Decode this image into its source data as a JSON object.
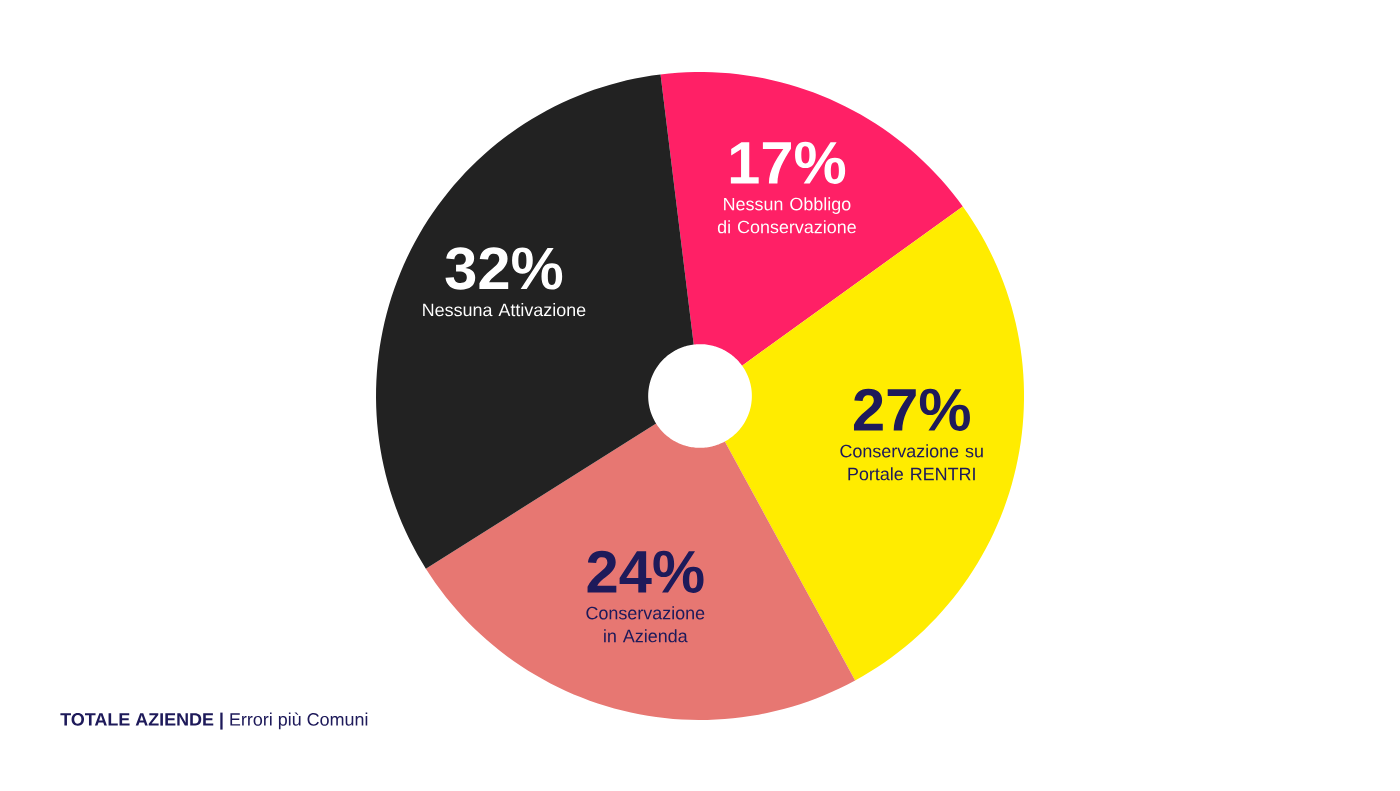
{
  "chart_data": {
    "type": "donut",
    "categories": [
      "Nessun Obbligo di Conservazione",
      "Conservazione su Portale RENTRI",
      "Conservazione in Azienda",
      "Nessuna Attivazione"
    ],
    "values": [
      17,
      27,
      24,
      32
    ],
    "value_labels": [
      "17%",
      "27%",
      "24%",
      "32%"
    ],
    "colors": [
      "#ff2066",
      "#ffec00",
      "#e77772",
      "#222222"
    ],
    "annotations": [
      "**TOTALE AZIENDE |** Errori più Comuni"
    ]
  }
}
